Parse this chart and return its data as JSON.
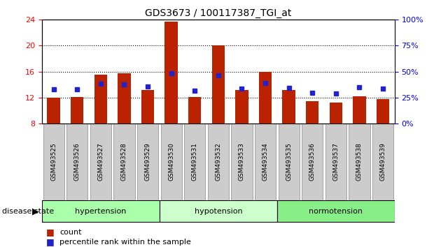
{
  "title": "GDS3673 / 100117387_TGI_at",
  "samples": [
    "GSM493525",
    "GSM493526",
    "GSM493527",
    "GSM493528",
    "GSM493529",
    "GSM493530",
    "GSM493531",
    "GSM493532",
    "GSM493533",
    "GSM493534",
    "GSM493535",
    "GSM493536",
    "GSM493537",
    "GSM493538",
    "GSM493539"
  ],
  "count_values": [
    12.0,
    12.1,
    15.5,
    15.8,
    13.2,
    23.7,
    12.1,
    20.0,
    13.2,
    16.0,
    13.2,
    11.4,
    11.2,
    12.2,
    11.8
  ],
  "percentile_values": [
    13.3,
    13.3,
    14.1,
    14.0,
    13.7,
    15.8,
    13.1,
    15.4,
    13.4,
    14.2,
    13.5,
    12.7,
    12.6,
    13.6,
    13.4
  ],
  "groups": [
    {
      "label": "hypertension",
      "start": 0,
      "end": 4,
      "color": "#aaffaa"
    },
    {
      "label": "hypotension",
      "start": 5,
      "end": 9,
      "color": "#ccffcc"
    },
    {
      "label": "normotension",
      "start": 10,
      "end": 14,
      "color": "#88ee88"
    }
  ],
  "ylim_left": [
    8,
    24
  ],
  "yticks_left": [
    8,
    12,
    16,
    20,
    24
  ],
  "ylim_right": [
    0,
    100
  ],
  "yticks_right": [
    0,
    25,
    50,
    75,
    100
  ],
  "bar_color": "#bb2200",
  "dot_color": "#2222cc",
  "grid_yticks": [
    12,
    16,
    20,
    24
  ],
  "disease_state_label": "disease state",
  "legend_count": "count",
  "legend_percentile": "percentile rank within the sample",
  "xtick_bg": "#cccccc"
}
